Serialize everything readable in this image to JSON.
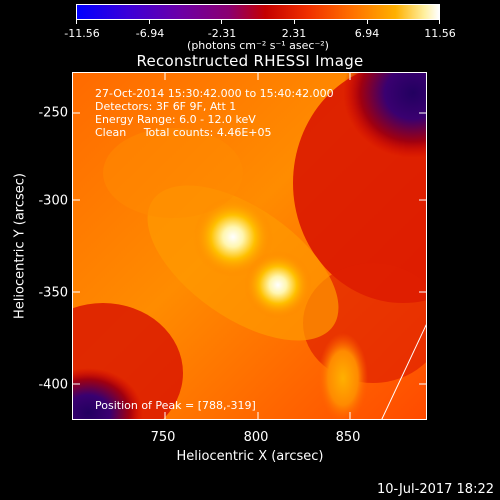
{
  "colorbar": {
    "tick_labels": [
      "-11.56",
      "-6.94",
      "-2.31",
      "2.31",
      "6.94",
      "11.56"
    ],
    "unit_label": "(photons cm⁻² s⁻¹ asec⁻²)",
    "colors": [
      "#0000ff",
      "#6a00a8",
      "#c40000",
      "#ff7000",
      "#ffb000",
      "#ffffff"
    ]
  },
  "title": "Reconstructed RHESSI Image",
  "annotations": {
    "time_range": "27-Oct-2014 15:30:42.000 to 15:40:42.000",
    "detectors": "Detectors: 3F 6F 9F, Att 1",
    "energy": "Energy Range: 6.0 - 12.0 keV",
    "clean": "Clean     Total counts: 4.46E+05",
    "peak": "Position of Peak = [788,-319]"
  },
  "axes": {
    "xlabel": "Heliocentric X (arcsec)",
    "ylabel": "Heliocentric Y (arcsec)",
    "x_ticks": [
      "750",
      "800",
      "850"
    ],
    "y_ticks": [
      "-250",
      "-300",
      "-350",
      "-400"
    ]
  },
  "footer": {
    "date": "10-Jul-2017 18:22"
  }
}
